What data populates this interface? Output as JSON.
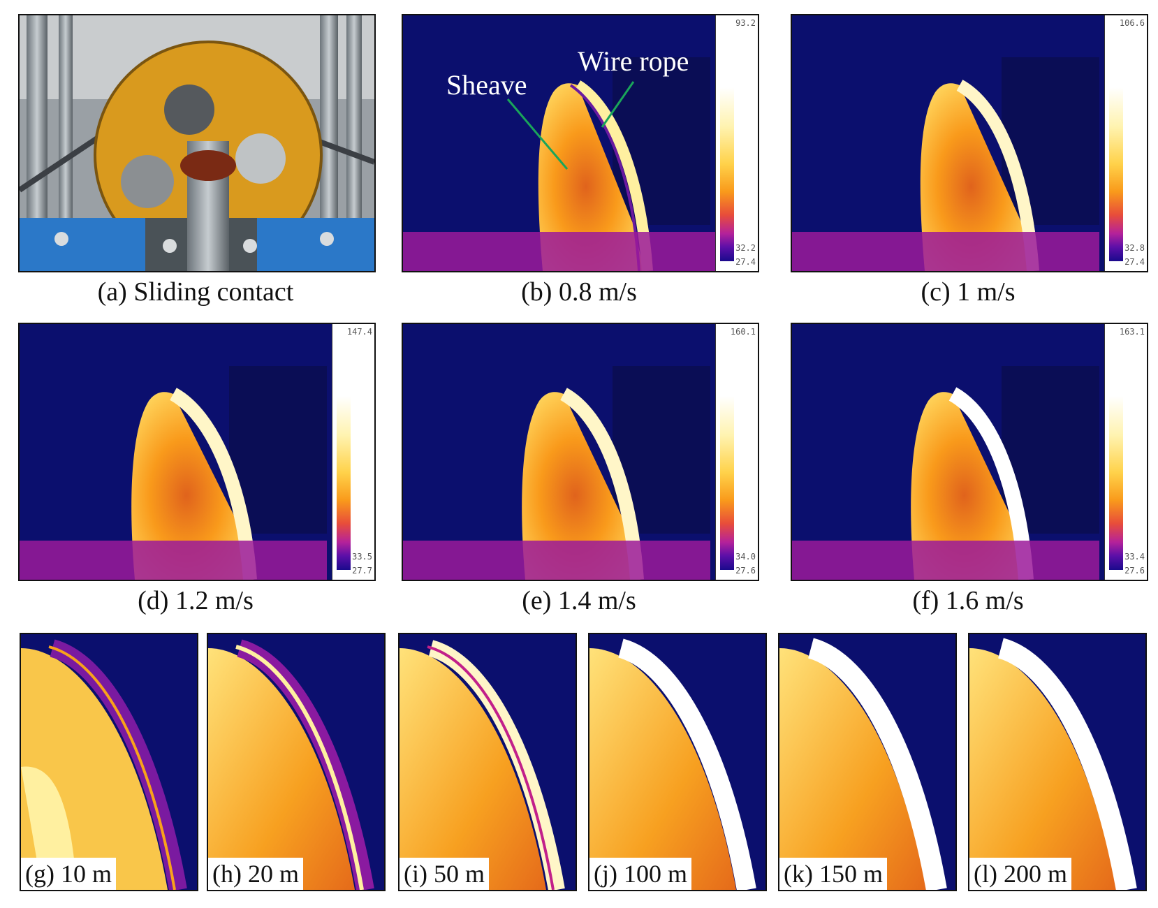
{
  "captions": {
    "a": "(a) Sliding contact",
    "b": "(b) 0.8 m/s",
    "c": "(c) 1 m/s",
    "d": "(d) 1.2 m/s",
    "e": "(e) 1.4 m/s",
    "f": "(f) 1.6 m/s"
  },
  "annotations": {
    "sheave": "Sheave",
    "wire_rope": "Wire rope"
  },
  "colorbars": {
    "b": {
      "max": "93.2",
      "mid": "32.2",
      "min": "27.4"
    },
    "c": {
      "max": "106.6",
      "mid": "32.8",
      "min": "27.4"
    },
    "d": {
      "max": "147.4",
      "mid": "33.5",
      "min": "27.7"
    },
    "e": {
      "max": "160.1",
      "mid": "34.0",
      "min": "27.6"
    },
    "f": {
      "max": "163.1",
      "mid": "33.4",
      "min": "27.6"
    }
  },
  "zoom_labels": {
    "g": "(g) 10 m",
    "h": "(h) 20 m",
    "i": "(i) 50 m",
    "j": "(j) 100 m",
    "k": "(k) 150 m",
    "l": "(l) 200 m"
  },
  "colors": {
    "cold": "#0b0f6e",
    "warm": "#f9a21b",
    "hot": "#fff6c8",
    "sheave_plate": "#d99a1e"
  }
}
